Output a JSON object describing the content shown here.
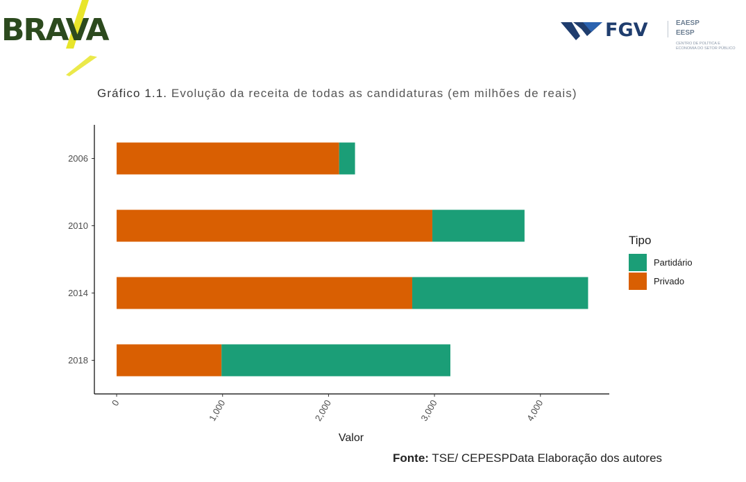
{
  "logos": {
    "brava": "BRAVA",
    "fgv": "FGV",
    "fgv_unit1": "EAESP",
    "fgv_unit2": "EESP",
    "fgv_subtitle": "Centro de Política e Economia do Setor Público"
  },
  "title": {
    "lead": "Gráfico 1.1.",
    "text": "Evolução da receita de todas as candidaturas (em milhões de reais)"
  },
  "colors": {
    "partidario": "#1b9e77",
    "privado": "#d95f02",
    "axis": "#000000"
  },
  "chart_data": {
    "type": "bar",
    "orientation": "horizontal",
    "stacked": true,
    "categories": [
      "2006",
      "2010",
      "2014",
      "2018"
    ],
    "series": [
      {
        "name": "Privado",
        "values": [
          2100,
          2980,
          2790,
          990
        ]
      },
      {
        "name": "Partidário",
        "values": [
          150,
          870,
          1660,
          2160
        ]
      }
    ],
    "xlabel": "Valor",
    "ylabel": "",
    "xlim": [
      -210,
      4650
    ],
    "xticks": [
      0,
      1000,
      2000,
      3000,
      4000
    ],
    "xtick_labels": [
      "0",
      "1,000",
      "2,000",
      "3,000",
      "4,000"
    ],
    "legend": {
      "title": "Tipo",
      "position": "right",
      "items": [
        {
          "label": "Partidário",
          "color": "#1b9e77"
        },
        {
          "label": "Privado",
          "color": "#d95f02"
        }
      ]
    },
    "grid": false
  },
  "source": {
    "label": "Fonte:",
    "text": "TSE/ CEPESPData Elaboração dos autores"
  }
}
